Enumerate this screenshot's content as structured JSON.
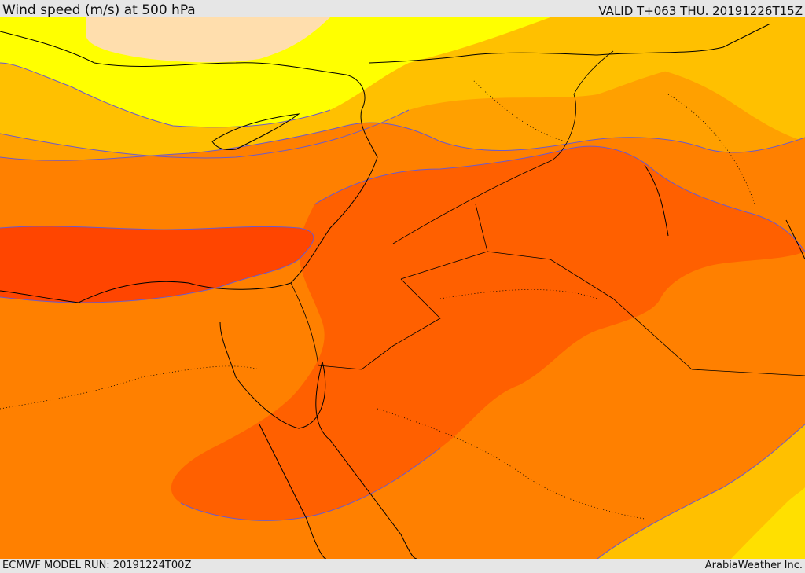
{
  "header": {
    "title": "Wind speed (m/s) at 500 hPa",
    "valid": "VALID T+063 THU. 20191226T15Z"
  },
  "footer": {
    "model_run": "ECMWF MODEL RUN: 20191224T00Z",
    "credit": "ArabiaWeather Inc."
  },
  "map": {
    "variable": "Wind speed (m/s) at 500 hPa",
    "colors": {
      "very_low": "#ffdead",
      "low": "#ffff00",
      "low_mid": "#ffe000",
      "mid": "#ffc000",
      "mid_high": "#ffa000",
      "high": "#ff8000",
      "higher": "#ff6000",
      "highest": "#ff4500",
      "contour": "#6a5acd",
      "coast": "#000000"
    }
  }
}
